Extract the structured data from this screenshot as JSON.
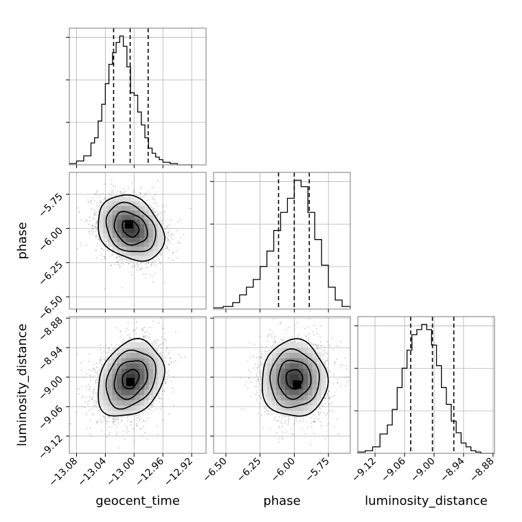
{
  "chart_data": {
    "type": "corner",
    "grid": true,
    "parameters": [
      "geocent_time",
      "phase",
      "luminosity_distance"
    ],
    "axes": {
      "geocent_time": {
        "label": "geocent_time",
        "range": [
          -13.09,
          -12.9
        ],
        "ticks": [
          -13.08,
          -13.04,
          -13.0,
          -12.96,
          -12.92
        ],
        "tick_labels": [
          "−13.08",
          "−13.04",
          "−13.00",
          "−12.96",
          "−12.92"
        ]
      },
      "phase": {
        "label": "phase",
        "range": [
          -6.59,
          -5.59
        ],
        "ticks": [
          -6.5,
          -6.25,
          -6.0,
          -5.75
        ],
        "tick_labels": [
          "−6.50",
          "−6.25",
          "−6.00",
          "−5.75"
        ]
      },
      "luminosity_distance": {
        "label": "luminosity_distance",
        "range": [
          -9.155,
          -8.877
        ],
        "ticks": [
          -9.12,
          -9.06,
          -9.0,
          -8.94,
          -8.88
        ],
        "tick_labels": [
          "−9.12",
          "−9.06",
          "−9.00",
          "−8.94",
          "−8.88"
        ]
      }
    },
    "marginals": [
      {
        "parameter": "geocent_time",
        "quantiles": [
          -13.0285,
          -13.0055,
          -12.9805
        ],
        "histogram": {
          "bin_edges": [
            -13.09,
            -13.08,
            -13.07,
            -13.06,
            -13.055,
            -13.05,
            -13.045,
            -13.04,
            -13.035,
            -13.03,
            -13.025,
            -13.02,
            -13.015,
            -13.01,
            -13.005,
            -13.0,
            -12.995,
            -12.99,
            -12.985,
            -12.98,
            -12.975,
            -12.97,
            -12.965,
            -12.96,
            -12.95,
            -12.94,
            -12.93,
            -12.92
          ],
          "counts": [
            0.01,
            0.03,
            0.07,
            0.17,
            0.21,
            0.34,
            0.47,
            0.63,
            0.78,
            0.87,
            0.95,
            1.0,
            0.92,
            0.76,
            0.56,
            0.54,
            0.41,
            0.31,
            0.21,
            0.13,
            0.09,
            0.06,
            0.04,
            0.02,
            0.01,
            0.0,
            0.0
          ]
        }
      },
      {
        "parameter": "phase",
        "quantiles": [
          -6.115,
          -6.0,
          -5.89
        ],
        "histogram": {
          "bin_edges": [
            -6.59,
            -6.52,
            -6.45,
            -6.4,
            -6.35,
            -6.3,
            -6.25,
            -6.2,
            -6.15,
            -6.1,
            -6.05,
            -6.0,
            -5.95,
            -5.9,
            -5.85,
            -5.8,
            -5.75,
            -5.7,
            -5.65,
            -5.59
          ],
          "counts": [
            0.01,
            0.02,
            0.05,
            0.11,
            0.17,
            0.23,
            0.33,
            0.45,
            0.61,
            0.75,
            0.86,
            1.0,
            0.95,
            0.75,
            0.54,
            0.34,
            0.17,
            0.07,
            0.02
          ]
        }
      },
      {
        "parameter": "luminosity_distance",
        "quantiles": [
          -9.0475,
          -9.0033,
          -8.9598
        ],
        "histogram": {
          "bin_edges": [
            -9.155,
            -9.14,
            -9.125,
            -9.11,
            -9.095,
            -9.085,
            -9.075,
            -9.065,
            -9.055,
            -9.045,
            -9.035,
            -9.025,
            -9.015,
            -9.005,
            -8.995,
            -8.985,
            -8.975,
            -8.965,
            -8.955,
            -8.945,
            -8.935,
            -8.925,
            -8.915,
            -8.905,
            -8.877
          ],
          "counts": [
            0.01,
            0.02,
            0.05,
            0.15,
            0.22,
            0.34,
            0.51,
            0.66,
            0.8,
            0.92,
            0.96,
            1.0,
            0.96,
            0.84,
            0.68,
            0.51,
            0.38,
            0.25,
            0.16,
            0.08,
            0.05,
            0.02,
            0.01,
            0.0
          ]
        }
      }
    ],
    "joints": [
      {
        "x": "geocent_time",
        "y": "phase",
        "mean": [
          -13.005,
          -6.0
        ],
        "sigma": [
          0.023,
          0.12
        ],
        "correlation": -0.25,
        "peak": [
          -13.007,
          -5.97
        ],
        "contour_levels_sigma": [
          0.5,
          1.0,
          1.5,
          2.0
        ]
      },
      {
        "x": "geocent_time",
        "y": "luminosity_distance",
        "mean": [
          -13.005,
          -9.004
        ],
        "sigma": [
          0.023,
          0.039
        ],
        "correlation": 0.25,
        "peak": [
          -13.005,
          -9.01
        ],
        "contour_levels_sigma": [
          0.5,
          1.0,
          1.5,
          2.0
        ]
      },
      {
        "x": "phase",
        "y": "luminosity_distance",
        "mean": [
          -6.0,
          -9.004
        ],
        "sigma": [
          0.12,
          0.039
        ],
        "correlation": 0.0,
        "peak": [
          -5.98,
          -9.015
        ],
        "contour_levels_sigma": [
          0.5,
          1.0,
          1.5,
          2.0
        ]
      }
    ]
  }
}
